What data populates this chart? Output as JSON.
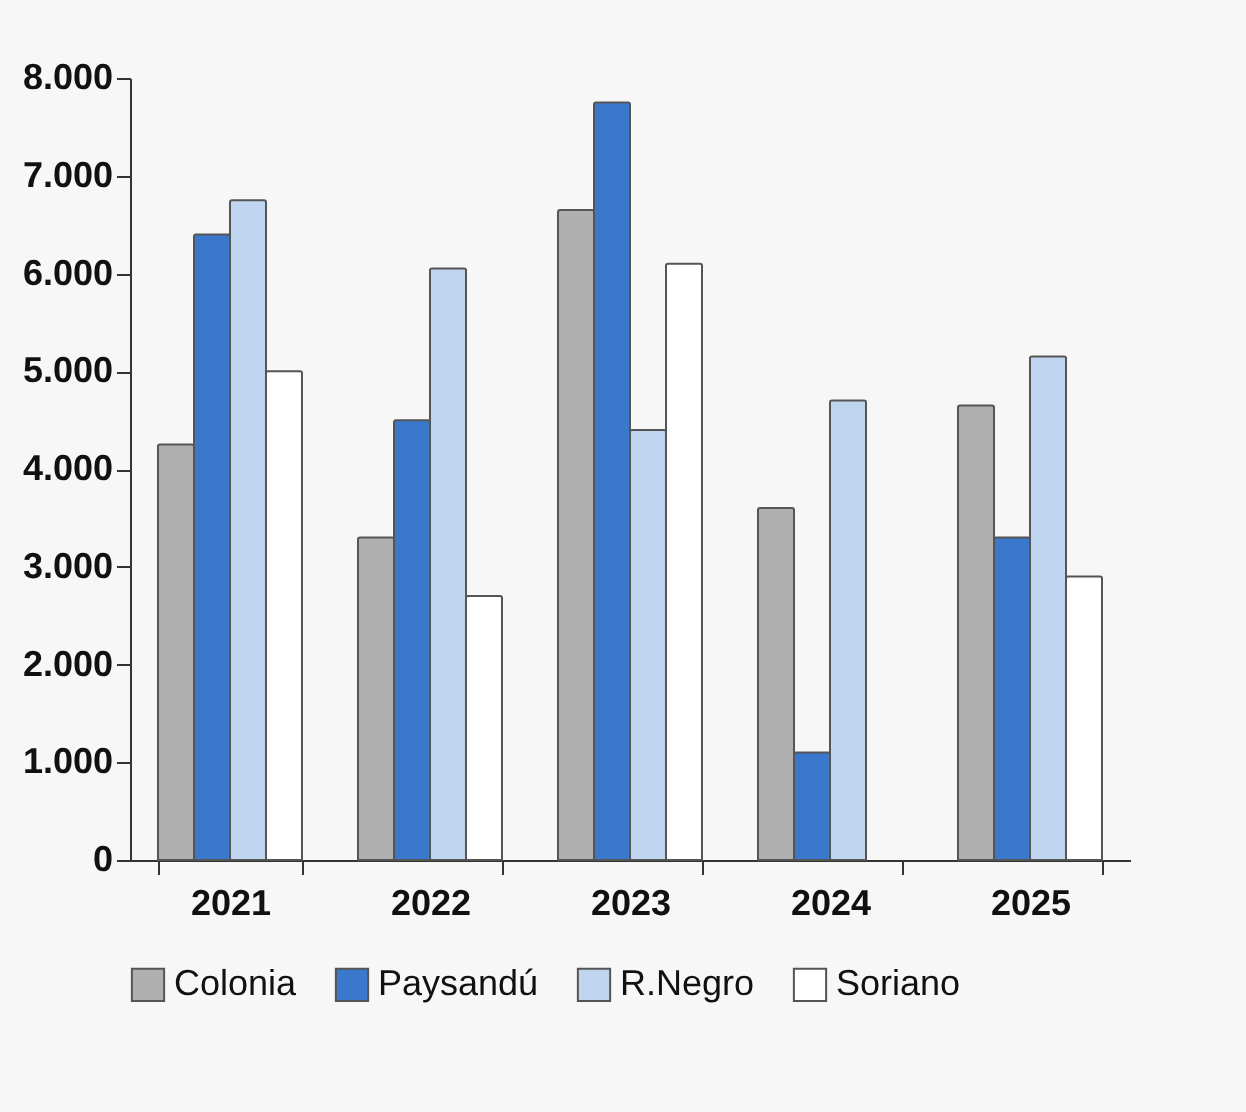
{
  "chart_data": {
    "type": "bar",
    "categories": [
      "2021",
      "2022",
      "2023",
      "2024",
      "2025"
    ],
    "series": [
      {
        "name": "Colonia",
        "color": "#b0b0b0",
        "values": [
          4250,
          3300,
          6650,
          3600,
          4650
        ]
      },
      {
        "name": "Paysandú",
        "color": "#3a78cc",
        "values": [
          6400,
          4500,
          7750,
          1100,
          3300
        ]
      },
      {
        "name": "R.Negro",
        "color": "#c0d6f0",
        "values": [
          6750,
          6050,
          4400,
          4700,
          5150
        ]
      },
      {
        "name": "Soriano",
        "color": "#ffffff",
        "values": [
          5000,
          2700,
          6100,
          null,
          2900
        ]
      }
    ],
    "ylim": [
      0,
      8000
    ],
    "yticks": [
      {
        "value": 0,
        "label": "0"
      },
      {
        "value": 1000,
        "label": "1.000"
      },
      {
        "value": 2000,
        "label": "2.000"
      },
      {
        "value": 3000,
        "label": "3.000"
      },
      {
        "value": 4000,
        "label": "4.000"
      },
      {
        "value": 5000,
        "label": "5.000"
      },
      {
        "value": 6000,
        "label": "6.000"
      },
      {
        "value": 7000,
        "label": "7.000"
      },
      {
        "value": 8000,
        "label": "8.000"
      }
    ],
    "grid": false,
    "legend": "bottom"
  }
}
